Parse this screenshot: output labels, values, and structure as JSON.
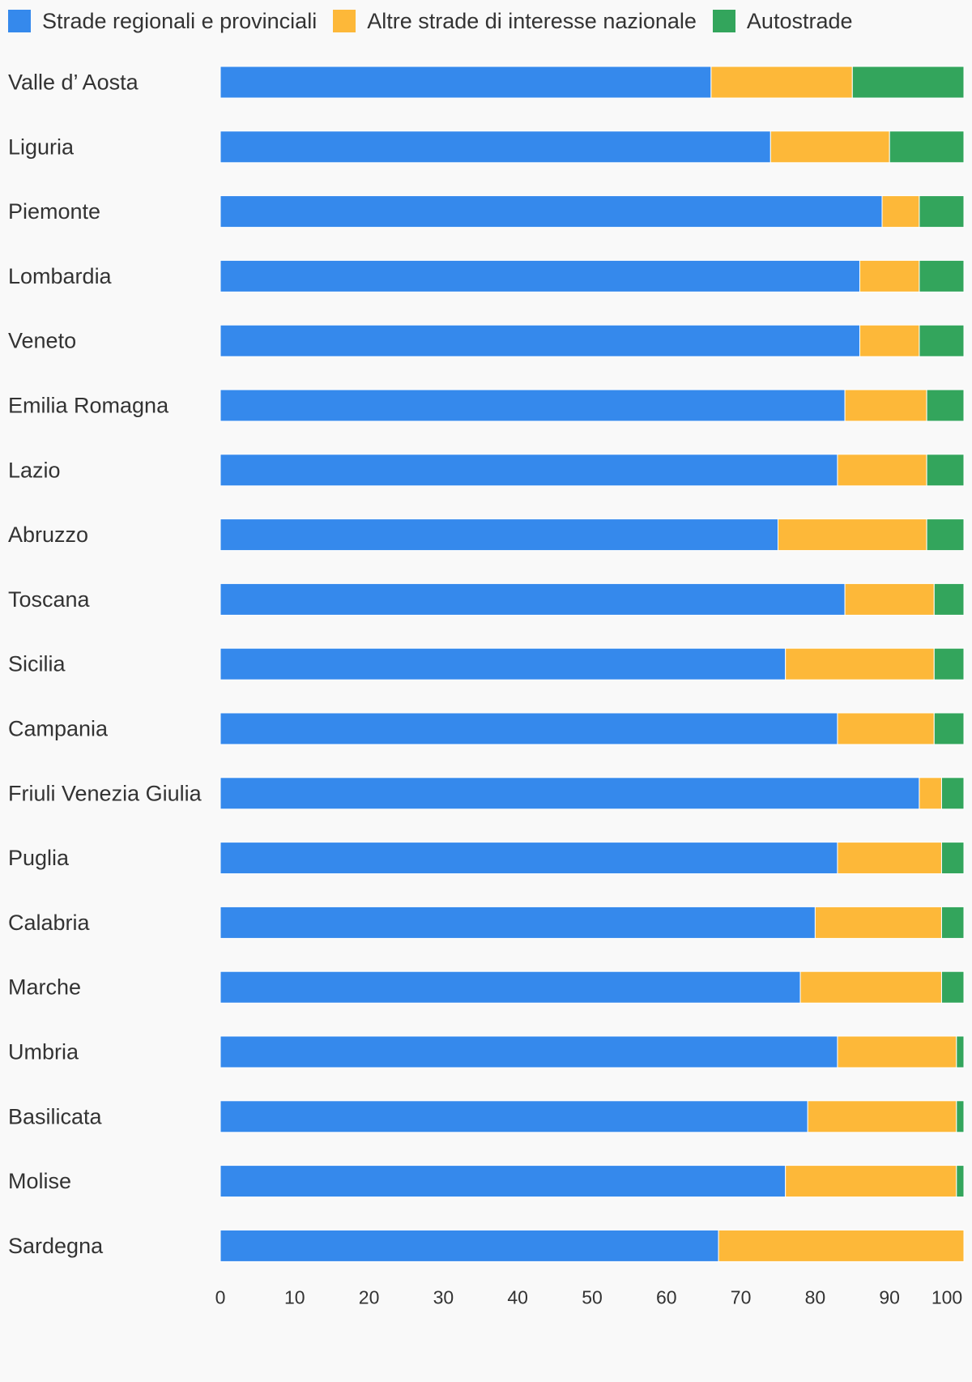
{
  "chart_data": {
    "type": "bar",
    "orientation": "horizontal",
    "stacked": true,
    "title": "",
    "xlabel": "",
    "ylabel": "",
    "xlim": [
      0,
      100
    ],
    "x_ticks": [
      "0",
      "10",
      "20",
      "30",
      "40",
      "50",
      "60",
      "70",
      "80",
      "90",
      "100"
    ],
    "grid": false,
    "legend_position": "top-left",
    "categories": [
      "Valle d’ Aosta",
      "Liguria",
      "Piemonte",
      "Lombardia",
      "Veneto",
      "Emilia Romagna",
      "Lazio",
      "Abruzzo",
      "Toscana",
      "Sicilia",
      "Campania",
      "Friuli Venezia Giulia",
      "Puglia",
      "Calabria",
      "Marche",
      "Umbria",
      "Basilicata",
      "Molise",
      "Sardegna"
    ],
    "series": [
      {
        "name": "Strade regionali e provinciali",
        "color": "#3589ec",
        "values": [
          66,
          74,
          89,
          86,
          86,
          84,
          83,
          75,
          84,
          76,
          83,
          94,
          83,
          80,
          78,
          83,
          79,
          76,
          67
        ]
      },
      {
        "name": "Altre strade di interesse nazionale",
        "color": "#fdb839",
        "values": [
          19,
          16,
          5,
          8,
          8,
          11,
          12,
          20,
          12,
          20,
          13,
          3,
          14,
          17,
          19,
          16,
          20,
          23,
          33
        ]
      },
      {
        "name": "Autostrade",
        "color": "#33a55c",
        "values": [
          15,
          10,
          6,
          6,
          6,
          5,
          5,
          5,
          4,
          4,
          4,
          3,
          3,
          3,
          3,
          1,
          1,
          1,
          0
        ]
      }
    ]
  }
}
